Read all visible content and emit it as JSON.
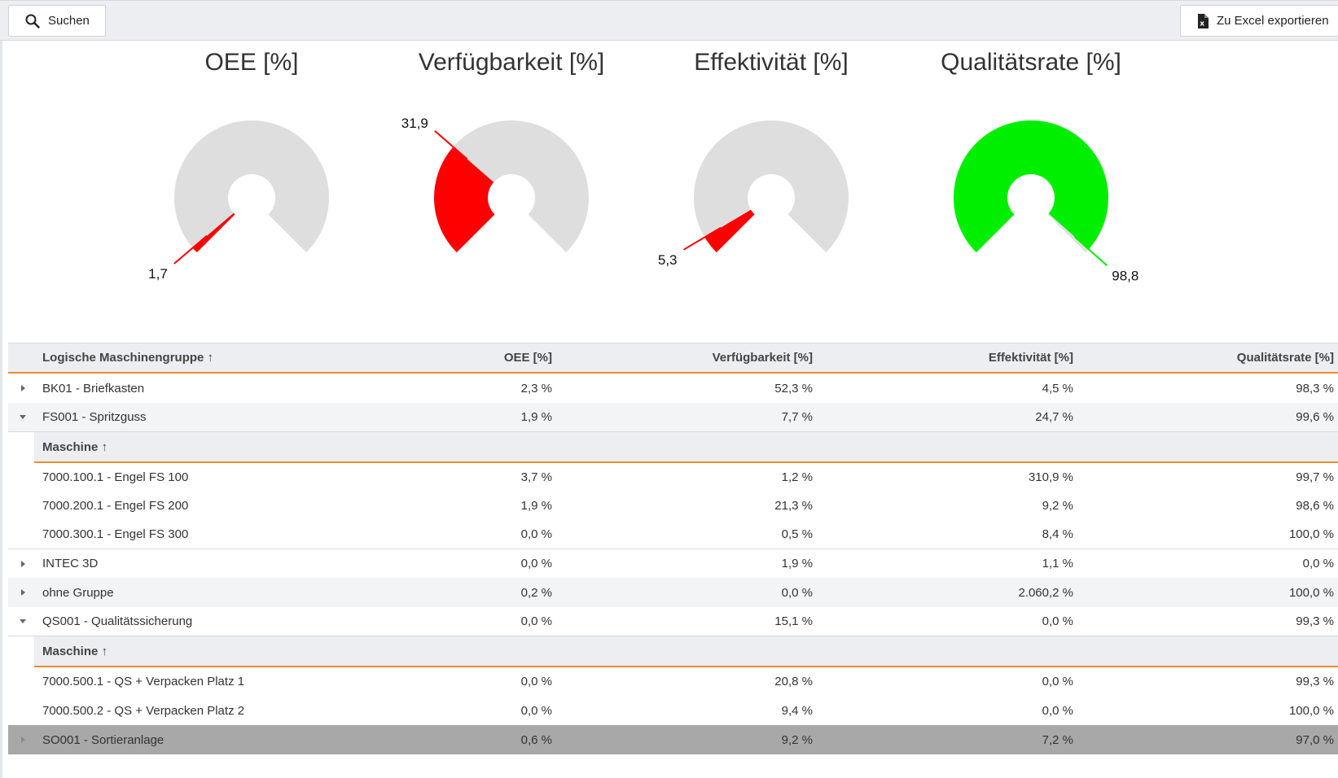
{
  "toolbar": {
    "search_label": "Suchen",
    "export_label": "Zu Excel exportieren"
  },
  "gauges": [
    {
      "title": "OEE [%]",
      "value": 1.7,
      "label": "1,7",
      "color": "#ff0000"
    },
    {
      "title": "Verfügbarkeit [%]",
      "value": 31.9,
      "label": "31,9",
      "color": "#ff0000"
    },
    {
      "title": "Effektivität [%]",
      "value": 5.3,
      "label": "5,3",
      "color": "#ff0000"
    },
    {
      "title": "Qualitätsrate [%]",
      "value": 98.8,
      "label": "98,8",
      "color": "#00ee00"
    }
  ],
  "grid": {
    "columns": [
      "Logische Maschinengruppe ↑",
      "OEE [%]",
      "Verfügbarkeit [%]",
      "Effektivität [%]",
      "Qualitätsrate [%]"
    ],
    "sub_header": "Maschine ↑",
    "rows": [
      {
        "name": "BK01 - Briefkasten",
        "oee": "2,3 %",
        "verf": "52,3 %",
        "eff": "4,5 %",
        "qual": "98,3 %"
      },
      {
        "name": "FS001 - Spritzguss",
        "oee": "1,9 %",
        "verf": "7,7 %",
        "eff": "24,7 %",
        "qual": "99,6 %"
      },
      {
        "name": "7000.100.1 - Engel FS 100",
        "oee": "3,7 %",
        "verf": "1,2 %",
        "eff": "310,9 %",
        "qual": "99,7 %"
      },
      {
        "name": "7000.200.1 - Engel FS 200",
        "oee": "1,9 %",
        "verf": "21,3 %",
        "eff": "9,2 %",
        "qual": "98,6 %"
      },
      {
        "name": "7000.300.1 - Engel FS 300",
        "oee": "0,0 %",
        "verf": "0,5 %",
        "eff": "8,4 %",
        "qual": "100,0 %"
      },
      {
        "name": "INTEC 3D",
        "oee": "0,0 %",
        "verf": "1,9 %",
        "eff": "1,1 %",
        "qual": "0,0 %"
      },
      {
        "name": "ohne Gruppe",
        "oee": "0,2 %",
        "verf": "0,0 %",
        "eff": "2.060,2 %",
        "qual": "100,0 %"
      },
      {
        "name": "QS001 - Qualitätssicherung",
        "oee": "0,0 %",
        "verf": "15,1 %",
        "eff": "0,0 %",
        "qual": "99,3 %"
      },
      {
        "name": "7000.500.1 - QS + Verpacken Platz 1",
        "oee": "0,0 %",
        "verf": "20,8 %",
        "eff": "0,0 %",
        "qual": "99,3 %"
      },
      {
        "name": "7000.500.2 - QS + Verpacken Platz 2",
        "oee": "0,0 %",
        "verf": "9,4 %",
        "eff": "0,0 %",
        "qual": "100,0 %"
      },
      {
        "name": "SO001 - Sortieranlage",
        "oee": "0,6 %",
        "verf": "9,2 %",
        "eff": "7,2 %",
        "qual": "97,0 %"
      }
    ]
  }
}
